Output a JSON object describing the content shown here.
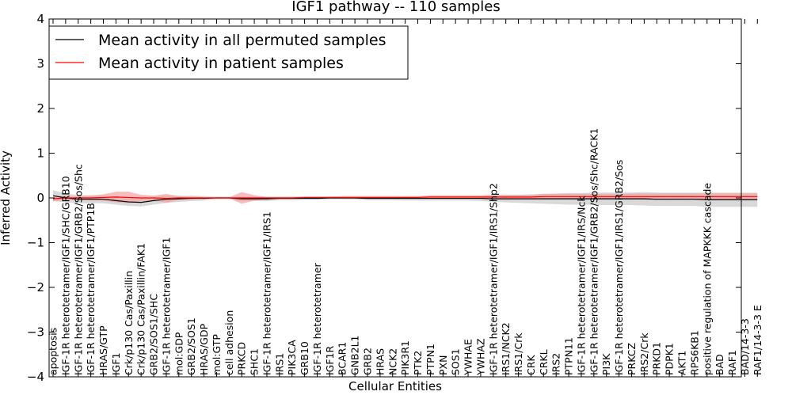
{
  "chart_data": {
    "type": "line",
    "title": "IGF1 pathway -- 110 samples",
    "xlabel": "Cellular Entities",
    "ylabel": "Inferred Activity",
    "ylim": [
      -4,
      4
    ],
    "yticks": [
      -4,
      -3,
      -2,
      -1,
      0,
      1,
      2,
      3,
      4
    ],
    "ytick_labels": [
      "−4",
      "−3",
      "−2",
      "−1",
      "0",
      "1",
      "2",
      "3",
      "4"
    ],
    "legend_position": "top-left",
    "categories": [
      "apoptosis",
      "IGF-1R heterotetramer/IGF1/SHC/GRB10",
      "IGF-1R heterotetramer/IGF1/GRB2/Sos/Shc",
      "IGF-1R heterotetramer/IGF1/PTP1B",
      "HRAS/GTP",
      "IGF1",
      "Crk/p130 Cas/Paxillin",
      "Crk/p130 Cas/Paxillin/FAK1",
      "GRB2/SOS1/SHC",
      "IGF-1R heterotetramer/IGF1",
      "mol:GDP",
      "GRB2/SOS1",
      "HRAS/GDP",
      "mol:GTP",
      "cell adhesion",
      "PRKCD",
      "SHC1",
      "IGF-1R heterotetramer/IGF1/IRS1",
      "IRS1",
      "PIK3CA",
      "GRB10",
      "IGF-1R heterotetramer",
      "IGF1R",
      "BCAR1",
      "GNB2L1",
      "GRB2",
      "HRAS",
      "NCK2",
      "PIK3R1",
      "PTK2",
      "PTPN1",
      "PXN",
      "SOS1",
      "YWHAE",
      "YWHAZ",
      "IGF-1R heterotetramer/IGF1/IRS1/Shp2",
      "IRS1/NCK2",
      "IRS1/Crk",
      "CRK",
      "CRKL",
      "IRS2",
      "PTPN11",
      "IGF-1R heterotetramer/IGF1/IRS/Nck",
      "IGF-1R heterotetramer/IGF1/GRB2/Sos/Shc/RACK1",
      "PI3K",
      "IGF-1R heterotetramer/IGF1/IRS1/GRB2/Sos",
      "PRKCZ",
      "IRS2/Crk",
      "PRKD1",
      "PDPK1",
      "AKT1",
      "RPS6KB1",
      "positive regulation of MAPKKK cascade",
      "BAD",
      "RAF1",
      "BAD/14-3-3",
      "RAF1/14-3-3 E"
    ],
    "series": [
      {
        "name": "Mean activity in all permuted samples",
        "color": "#000000",
        "band_color": "#cccccc",
        "values": [
          0.05,
          0.0,
          -0.03,
          -0.03,
          -0.03,
          -0.06,
          -0.09,
          -0.1,
          -0.06,
          -0.03,
          -0.02,
          -0.01,
          -0.01,
          0.0,
          0.0,
          -0.02,
          -0.02,
          -0.02,
          -0.01,
          -0.01,
          -0.01,
          -0.01,
          0.0,
          0.0,
          0.0,
          -0.01,
          -0.01,
          -0.01,
          -0.01,
          -0.01,
          -0.01,
          -0.01,
          -0.01,
          -0.01,
          -0.01,
          -0.02,
          -0.02,
          -0.02,
          -0.02,
          -0.02,
          -0.02,
          -0.02,
          -0.02,
          -0.02,
          -0.02,
          -0.02,
          -0.02,
          -0.02,
          -0.03,
          -0.03,
          -0.03,
          -0.03,
          -0.04,
          -0.04,
          -0.04,
          -0.04,
          -0.04
        ],
        "band_halfwidth": [
          0.12,
          0.1,
          0.09,
          0.09,
          0.09,
          0.09,
          0.09,
          0.09,
          0.09,
          0.08,
          0.07,
          0.06,
          0.05,
          0.03,
          0.03,
          0.05,
          0.05,
          0.05,
          0.04,
          0.04,
          0.03,
          0.03,
          0.03,
          0.03,
          0.03,
          0.04,
          0.04,
          0.04,
          0.05,
          0.05,
          0.05,
          0.05,
          0.05,
          0.05,
          0.06,
          0.07,
          0.08,
          0.09,
          0.1,
          0.11,
          0.12,
          0.13,
          0.13,
          0.14,
          0.14,
          0.14,
          0.14,
          0.15,
          0.15,
          0.15,
          0.15,
          0.15,
          0.16,
          0.16,
          0.16,
          0.16,
          0.16
        ]
      },
      {
        "name": "Mean activity in patient samples",
        "color": "#ff0000",
        "band_color": "#f4a0a0",
        "values": [
          -0.02,
          0.0,
          0.0,
          0.0,
          0.01,
          0.02,
          0.01,
          0.0,
          0.0,
          -0.01,
          0.0,
          0.0,
          0.0,
          0.0,
          0.0,
          0.0,
          0.0,
          0.0,
          0.0,
          0.0,
          0.01,
          0.01,
          0.01,
          0.01,
          0.01,
          0.01,
          0.01,
          0.01,
          0.01,
          0.01,
          0.02,
          0.02,
          0.02,
          0.02,
          0.02,
          0.02,
          0.02,
          0.02,
          0.02,
          0.03,
          0.03,
          0.03,
          0.03,
          0.03,
          0.03,
          0.03,
          0.03,
          0.03,
          0.03,
          0.03,
          0.03,
          0.03,
          0.03,
          0.03,
          0.03,
          0.03,
          0.03
        ],
        "band_halfwidth": [
          0.06,
          0.04,
          0.04,
          0.05,
          0.07,
          0.12,
          0.13,
          0.07,
          0.05,
          0.1,
          0.04,
          0.03,
          0.02,
          0.01,
          0.01,
          0.13,
          0.06,
          0.02,
          0.02,
          0.02,
          0.02,
          0.02,
          0.02,
          0.03,
          0.03,
          0.03,
          0.03,
          0.03,
          0.03,
          0.03,
          0.04,
          0.04,
          0.04,
          0.04,
          0.04,
          0.05,
          0.05,
          0.05,
          0.05,
          0.06,
          0.06,
          0.06,
          0.06,
          0.06,
          0.06,
          0.06,
          0.07,
          0.07,
          0.07,
          0.07,
          0.07,
          0.07,
          0.07,
          0.07,
          0.07,
          0.07,
          0.07
        ]
      }
    ]
  }
}
